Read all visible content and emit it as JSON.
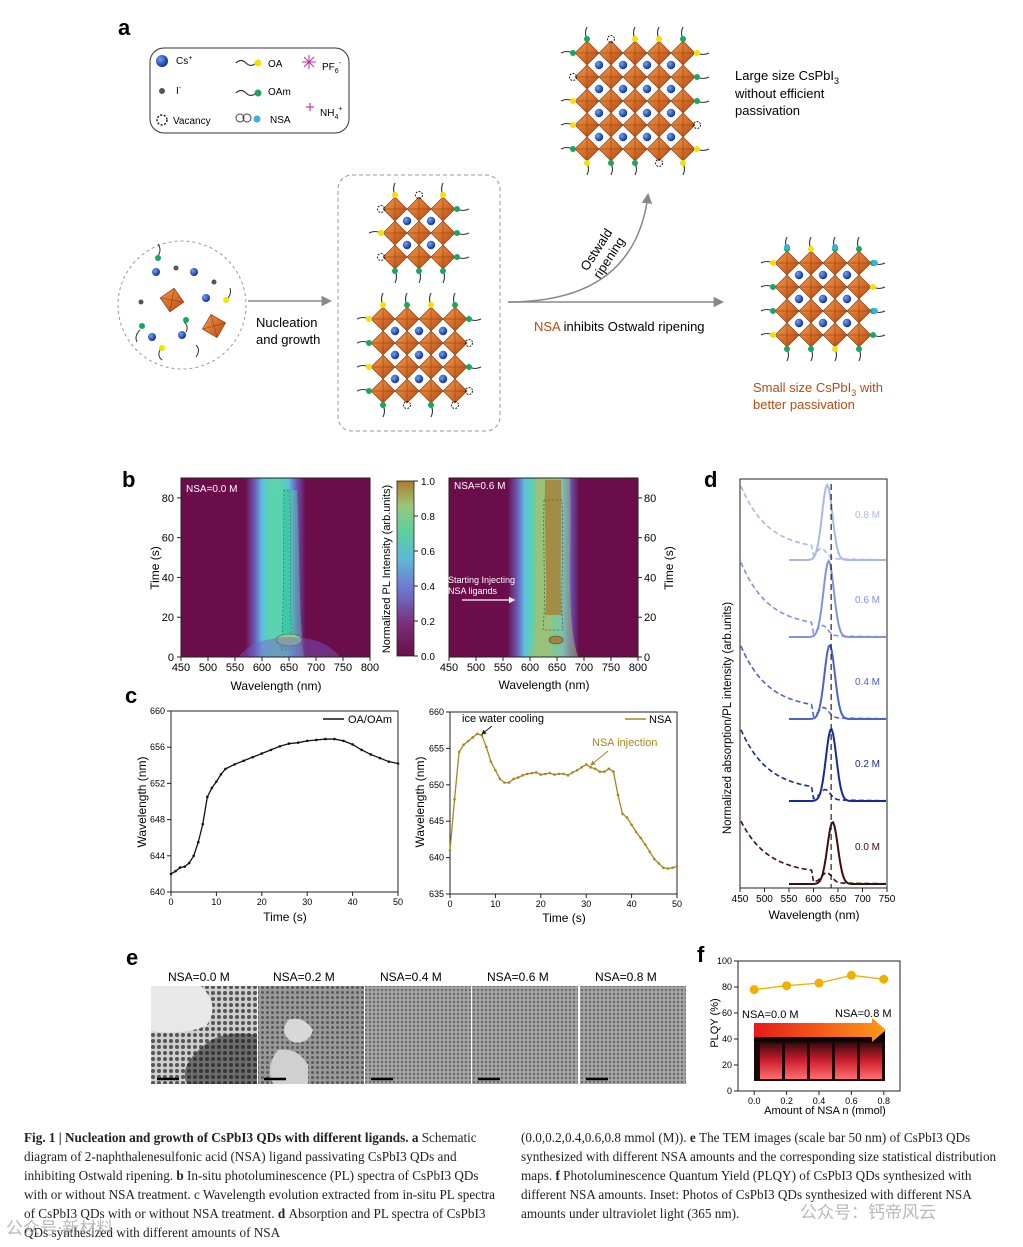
{
  "panels": {
    "a": "a",
    "b": "b",
    "c": "c",
    "d": "d",
    "e": "e",
    "f": "f"
  },
  "legend": {
    "cs": "Cs",
    "cs_sup": "+",
    "iodide": "I",
    "iodide_sup": "-",
    "vacancy": "Vacancy",
    "oa": "OA",
    "oam": "OAm",
    "nsa": "NSA",
    "pf6": "PF",
    "pf6_sub": "6",
    "pf6_sup": "-",
    "nh4": "NH",
    "nh4_sub": "4",
    "nh4_sup": "+"
  },
  "schematic": {
    "nucleation_l1": "Nucleation",
    "nucleation_l2": "and growth",
    "ostwald_l1": "Ostwald",
    "ostwald_l2": "ripening",
    "nsa_word": "NSA",
    "nsa_rest": " inhibits Ostwald ripening",
    "large_l1": "Large size CsPbI",
    "large_l1_sub": "3",
    "large_l2": "without efficient",
    "large_l3": "passivation",
    "small_l1": "Small size CsPbI",
    "small_l1_sub": "3",
    "small_l1_end": " with",
    "small_l2": "better passivation"
  },
  "b": {
    "left_label": "NSA=0.0 M",
    "right_label": "NSA=0.6 M",
    "arrow_l1": "Starting Injecting",
    "arrow_l2": "NSA ligands",
    "ylabel": "Time (s)",
    "xlabel": "Wavelength (nm)",
    "colorbar_label": "Normalized PL Intensity (arb.units)",
    "xticks": [
      "450",
      "500",
      "550",
      "600",
      "650",
      "700",
      "750",
      "800"
    ],
    "yticks": [
      "0",
      "20",
      "40",
      "60",
      "80"
    ],
    "cbticks": [
      "0.0",
      "0.2",
      "0.4",
      "0.6",
      "0.8",
      "1.0"
    ]
  },
  "chart_data": [
    {
      "type": "line",
      "title": "OA/OAm",
      "xlabel": "Time (s)",
      "ylabel": "Wavelength (nm)",
      "xlim": [
        0,
        50
      ],
      "ylim": [
        640,
        660
      ],
      "xticks": [
        "0",
        "10",
        "20",
        "30",
        "40",
        "50"
      ],
      "yticks": [
        "640",
        "644",
        "648",
        "652",
        "656",
        "660"
      ],
      "series": [
        {
          "name": "OA/OAm",
          "color": "#111111",
          "x": [
            0,
            1,
            2,
            3,
            4,
            5,
            6,
            7,
            8,
            9,
            10,
            11,
            12,
            14,
            16,
            18,
            20,
            22,
            24,
            26,
            28,
            30,
            32,
            34,
            36,
            38,
            40,
            42,
            44,
            46,
            48,
            50
          ],
          "y": [
            642,
            642.3,
            642.7,
            642.8,
            643.2,
            644,
            645.5,
            647.5,
            650.5,
            651.5,
            652.2,
            653,
            653.6,
            654.1,
            654.5,
            654.9,
            655.3,
            655.7,
            656.1,
            656.4,
            656.5,
            656.7,
            656.8,
            656.9,
            656.9,
            656.7,
            656.3,
            655.7,
            655.2,
            654.8,
            654.4,
            654.2
          ]
        }
      ]
    },
    {
      "type": "line",
      "title": "NSA",
      "xlabel": "Time (s)",
      "ylabel": "Wavelength (nm)",
      "xlim": [
        0,
        50
      ],
      "ylim": [
        635,
        660
      ],
      "xticks": [
        "0",
        "10",
        "20",
        "30",
        "40",
        "50"
      ],
      "yticks": [
        "635",
        "640",
        "645",
        "650",
        "655",
        "660"
      ],
      "annotations": [
        "ice water cooling",
        "NSA injection"
      ],
      "series": [
        {
          "name": "NSA",
          "color": "#a88520",
          "x": [
            0,
            1,
            2,
            3,
            4,
            5,
            6,
            7,
            8,
            9,
            10,
            11,
            12,
            13,
            14,
            15,
            16,
            17,
            18,
            19,
            20,
            21,
            22,
            23,
            24,
            25,
            26,
            27,
            28,
            29,
            30,
            31,
            32,
            33,
            34,
            35,
            36,
            37,
            38,
            39,
            40,
            41,
            42,
            43,
            44,
            45,
            46,
            47,
            48,
            49,
            50
          ],
          "y": [
            641,
            648,
            654.5,
            655.5,
            656,
            656.5,
            657,
            656.8,
            655.2,
            653.2,
            652,
            650.8,
            650.3,
            650.3,
            650.8,
            651,
            651.3,
            651.5,
            651.6,
            651.7,
            651.4,
            651.5,
            651.6,
            651.4,
            651.5,
            651.5,
            651.3,
            651.7,
            652,
            652.4,
            652.8,
            652.4,
            652.2,
            651.8,
            651.8,
            652.2,
            651.8,
            648.6,
            646,
            645.5,
            644.5,
            643.5,
            642.7,
            641.8,
            640.8,
            639.8,
            639.2,
            638.6,
            638.5,
            638.6,
            638.8
          ]
        }
      ]
    },
    {
      "type": "line",
      "title": "Absorption/PL",
      "xlabel": "Wavelength (nm)",
      "ylabel": "Normalized absorption/PL intensity (arb.units)",
      "xlim": [
        450,
        750
      ],
      "xticks": [
        "450",
        "500",
        "550",
        "600",
        "650",
        "700",
        "750"
      ],
      "dashed_line_at": 636,
      "series": [
        {
          "name": "0.0 M",
          "color": "#3f0d0d",
          "pl_peak": 639,
          "label": "0.0 M"
        },
        {
          "name": "0.2 M",
          "color": "#142a9a",
          "pl_peak": 636,
          "label": "0.2 M"
        },
        {
          "name": "0.4 M",
          "color": "#4a63cc",
          "pl_peak": 633,
          "label": "0.4 M"
        },
        {
          "name": "0.6 M",
          "color": "#7f93de",
          "pl_peak": 631,
          "label": "0.6 M"
        },
        {
          "name": "0.8 M",
          "color": "#aab8e8",
          "pl_peak": 628,
          "label": "0.8 M"
        }
      ]
    },
    {
      "type": "line",
      "title": "PLQY",
      "xlabel": "Amount of NSA n (mmol)",
      "ylabel": "PLQY (%)",
      "xlim": [
        -0.1,
        0.9
      ],
      "ylim": [
        0,
        100
      ],
      "xticks": [
        "0.0",
        "0.2",
        "0.4",
        "0.6",
        "0.8"
      ],
      "yticks": [
        "0",
        "20",
        "40",
        "60",
        "80",
        "100"
      ],
      "series": [
        {
          "name": "PLQY",
          "color": "#f0b000",
          "x": [
            0,
            0.2,
            0.4,
            0.6,
            0.8
          ],
          "y": [
            78,
            81,
            83,
            89,
            86
          ]
        }
      ]
    }
  ],
  "c_labels": {
    "left_legend": "OA/OAm",
    "right_legend": "NSA",
    "ice": "ice water cooling",
    "inj": "NSA injection"
  },
  "d_labels": {
    "l0": "0.0 M",
    "l1": "0.2 M",
    "l2": "0.4 M",
    "l3": "0.6 M",
    "l4": "0.8 M"
  },
  "e": {
    "labels": [
      "NSA=0.0 M",
      "NSA=0.2 M",
      "NSA=0.4 M",
      "NSA=0.6 M",
      "NSA=0.8 M"
    ]
  },
  "f": {
    "inset_left": "NSA=0.0 M",
    "inset_right": "NSA=0.8 M"
  },
  "caption": {
    "left": [
      {
        "b": "Fig. 1 | Nucleation and growth of CsPbI3 QDs with different ligands. a ",
        "t": "Schematic diagram of 2-naphthalenesulfonic acid (NSA) ligand passivating CsPbI3 QDs and inhibiting Ostwald ripening. "
      },
      {
        "b": "b ",
        "t": "In-situ photoluminescence (PL) spectra of CsPbI3 QDs with or without NSA treatment. c Wavelength evolution extracted from in-situ PL spectra of CsPbI3 QDs with or without NSA treatment. "
      },
      {
        "b": "d ",
        "t": "Absorption and PL spectra of CsPbI3 QDs synthesized with different amounts of NSA"
      }
    ],
    "right": [
      {
        "b": "",
        "t": "(0.0,0.2,0.4,0.6,0.8 mmol (M)). "
      },
      {
        "b": "e ",
        "t": "The TEM images (scale bar 50 nm) of CsPbI3 QDs synthesized with different NSA amounts and the corresponding size statistical distribution maps. "
      },
      {
        "b": "f ",
        "t": "Photoluminescence Quantum Yield (PLQY) of CsPbI3 QDs synthesized with different NSA amounts. Inset: Photos of CsPbI3 QDs synthesized with different NSA amounts under ultraviolet light (365 nm)."
      }
    ]
  },
  "watermark": {
    "left": "公众号·新材料",
    "right": "公众号：钙帝风云"
  }
}
